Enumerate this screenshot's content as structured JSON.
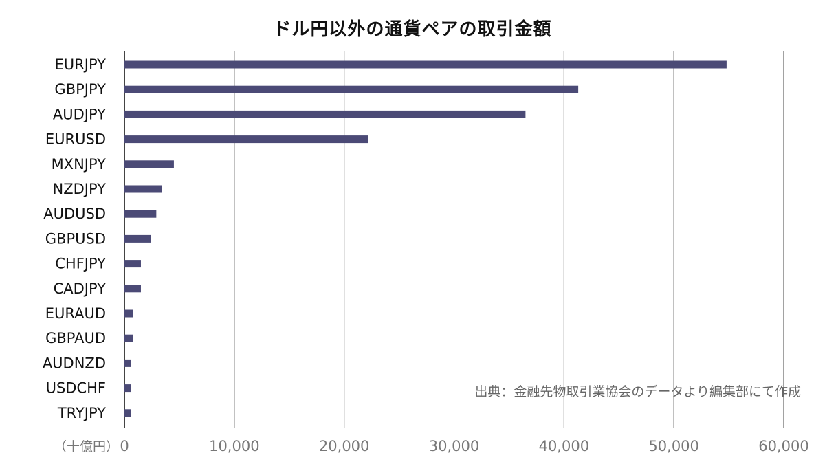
{
  "chart_data": {
    "type": "bar",
    "orientation": "horizontal",
    "title": "ドル円以外の通貨ペアの取引金額",
    "unit_label": "（十億円）",
    "source_note": "出典：金融先物取引業協会のデータより編集部にて作成",
    "categories": [
      "EURJPY",
      "GBPJPY",
      "AUDJPY",
      "EURUSD",
      "MXNJPY",
      "NZDJPY",
      "AUDUSD",
      "GBPUSD",
      "CHFJPY",
      "CADJPY",
      "EURAUD",
      "GBPAUD",
      "AUDNZD",
      "USDCHF",
      "TRYJPY"
    ],
    "values": [
      54800,
      41300,
      36500,
      22200,
      4500,
      3400,
      2900,
      2400,
      1500,
      1500,
      800,
      800,
      600,
      600,
      600
    ],
    "xlim": [
      0,
      60000
    ],
    "x_ticks": [
      0,
      10000,
      20000,
      30000,
      40000,
      50000,
      60000
    ],
    "x_tick_labels": [
      "0",
      "10,000",
      "20,000",
      "30,000",
      "40,000",
      "50,000",
      "60,000"
    ],
    "grid": true,
    "legend": "none",
    "bar_color": "#4b4a76",
    "grid_color": "#444444"
  }
}
